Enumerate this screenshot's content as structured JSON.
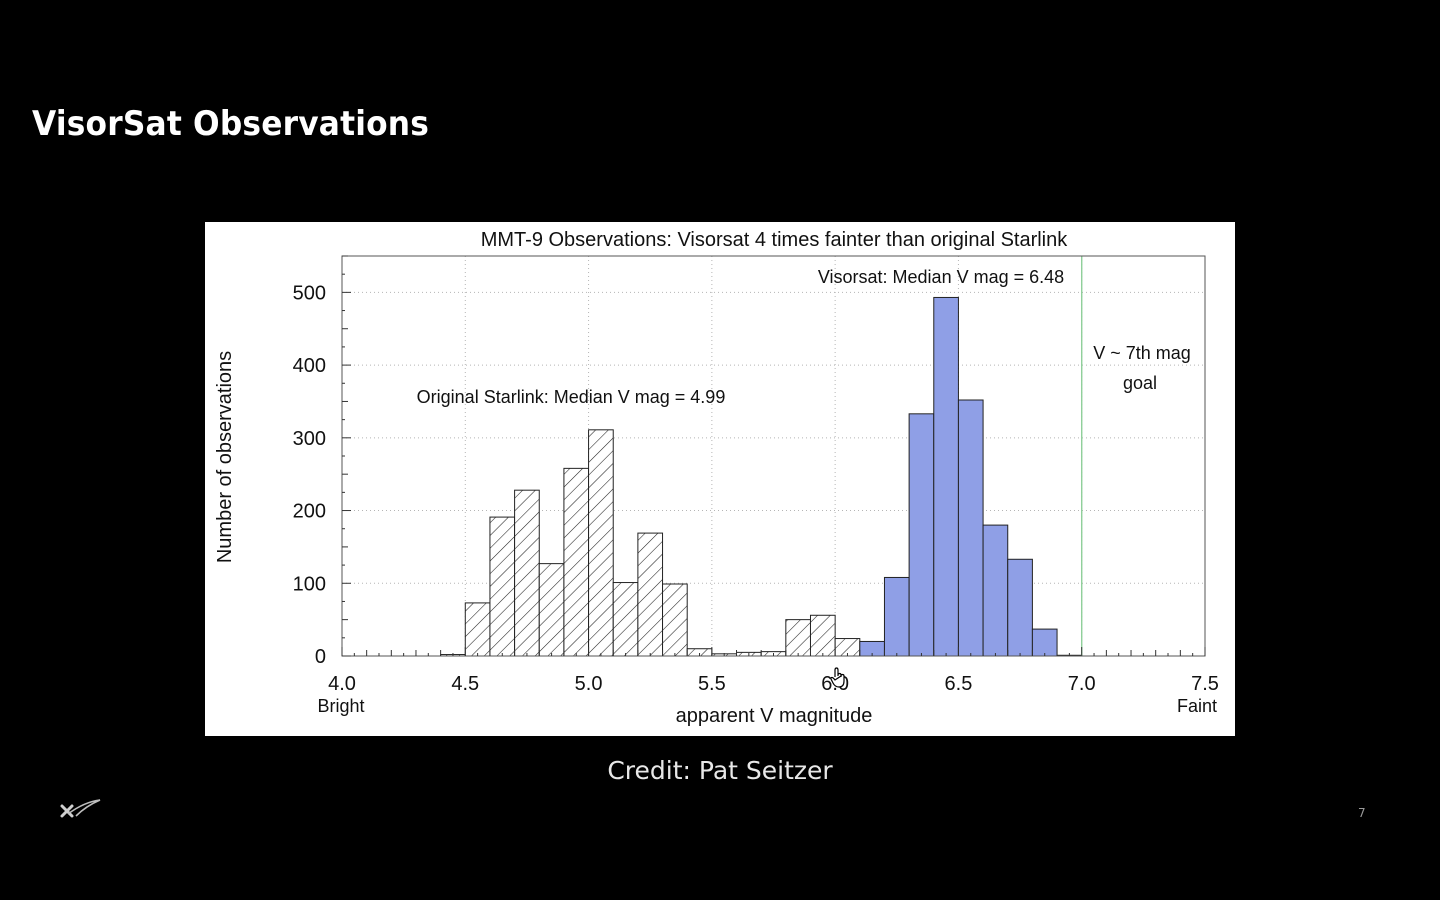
{
  "slide": {
    "title": "VisorSat Observations",
    "credit": "Credit: Pat Seitzer",
    "page_number": "7",
    "logo_icon": "spacex-x-icon",
    "cursor_icon": "hand-cursor-icon"
  },
  "chart_data": {
    "type": "bar",
    "title": "MMT-9 Observations: Visorsat 4 times fainter than original Starlink",
    "xlabel": "apparent V magnitude",
    "ylabel": "Number of observations",
    "xlim": [
      4.0,
      7.5
    ],
    "ylim": [
      0,
      550
    ],
    "xticks": [
      "4.0",
      "4.5",
      "5.0",
      "5.5",
      "6.0",
      "6.5",
      "7.0",
      "7.5"
    ],
    "yticks": [
      "0",
      "100",
      "200",
      "300",
      "400",
      "500"
    ],
    "x_end_labels": {
      "left": "Bright",
      "right": "Faint"
    },
    "grid": true,
    "bin_width": 0.1,
    "series": [
      {
        "name": "Original Starlink",
        "style": "hatched",
        "bin_starts": [
          4.4,
          4.5,
          4.6,
          4.7,
          4.8,
          4.9,
          5.0,
          5.1,
          5.2,
          5.3,
          5.4,
          5.5,
          5.6,
          5.7,
          5.8,
          5.9,
          6.0,
          6.1
        ],
        "values": [
          2,
          73,
          191,
          228,
          127,
          258,
          311,
          101,
          169,
          99,
          10,
          3,
          5,
          6,
          50,
          56,
          24,
          3
        ]
      },
      {
        "name": "Visorsat",
        "style": "filled",
        "color": "#8f9fe6",
        "bin_starts": [
          6.1,
          6.2,
          6.3,
          6.4,
          6.5,
          6.6,
          6.7,
          6.8,
          6.9
        ],
        "values": [
          20,
          108,
          333,
          493,
          352,
          180,
          133,
          37,
          1
        ]
      }
    ],
    "annotations": [
      {
        "text": "Visorsat: Median V mag = 6.48"
      },
      {
        "text": "Original Starlink: Median V mag = 4.99"
      },
      {
        "text": "V ~ 7th mag"
      },
      {
        "text": "goal"
      }
    ],
    "reference_line": {
      "x": 7.0,
      "color": "#8fcf9a"
    }
  }
}
